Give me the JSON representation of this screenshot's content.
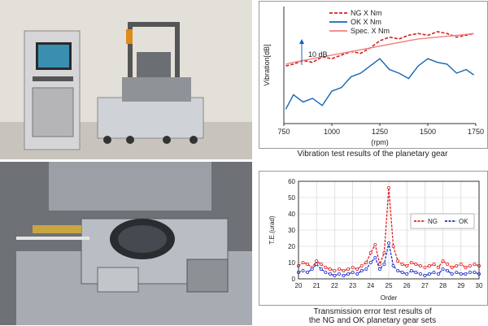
{
  "chart_data": [
    {
      "type": "line",
      "title": "",
      "caption": "Vibration test results of the planetary gear",
      "ylabel": "Vibration[dB]",
      "xlabel": "(rpm)",
      "xlim": [
        750,
        1750
      ],
      "x_ticks": [
        "750",
        "1000",
        "1250",
        "1500",
        "1750"
      ],
      "scale_annotation": "10 dB",
      "legend_position": "top",
      "x": [
        760,
        800,
        850,
        900,
        950,
        1000,
        1050,
        1100,
        1150,
        1200,
        1250,
        1300,
        1350,
        1400,
        1450,
        1500,
        1550,
        1600,
        1650,
        1700,
        1740
      ],
      "series": [
        {
          "name": "NG X Nm",
          "color": "#d42020",
          "dash": "dashed",
          "values": [
            62,
            63,
            65,
            64,
            67,
            66,
            68,
            70,
            69,
            72,
            76,
            78,
            77,
            79,
            80,
            79,
            81,
            80,
            78,
            79,
            80
          ]
        },
        {
          "name": "OK X Nm",
          "color": "#1464b4",
          "dash": "solid",
          "values": [
            38,
            46,
            42,
            44,
            40,
            48,
            50,
            56,
            58,
            62,
            66,
            60,
            58,
            55,
            62,
            66,
            64,
            63,
            58,
            60,
            57
          ]
        },
        {
          "name": "Spec. X Nm",
          "color": "#f08080",
          "dash": "solid",
          "values": [
            63,
            64,
            65,
            66,
            67,
            68,
            69,
            70,
            71,
            72,
            73,
            74,
            75,
            76,
            77,
            77.5,
            78,
            78.5,
            79,
            79.5,
            80
          ]
        }
      ]
    },
    {
      "type": "line",
      "title": "",
      "caption_line1": "Transmission error test results of",
      "caption_line2": "the NG and OK planetary gear sets",
      "ylabel": "T.E.(urad)",
      "xlabel": "Order",
      "xlim": [
        20,
        30
      ],
      "ylim": [
        0,
        60
      ],
      "x_ticks": [
        "20",
        "21",
        "22",
        "23",
        "24",
        "25",
        "26",
        "27",
        "28",
        "29",
        "30"
      ],
      "y_ticks": [
        "0",
        "10",
        "20",
        "30",
        "40",
        "50",
        "60"
      ],
      "grid": true,
      "legend_position": "right",
      "x": [
        20.0,
        20.25,
        20.5,
        20.75,
        21.0,
        21.25,
        21.5,
        21.75,
        22.0,
        22.25,
        22.5,
        22.75,
        23.0,
        23.25,
        23.5,
        23.75,
        24.0,
        24.25,
        24.5,
        24.75,
        25.0,
        25.25,
        25.5,
        25.75,
        26.0,
        26.25,
        26.5,
        26.75,
        27.0,
        27.25,
        27.5,
        27.75,
        28.0,
        28.25,
        28.5,
        28.75,
        29.0,
        29.25,
        29.5,
        29.75,
        30.0
      ],
      "series": [
        {
          "name": "NG",
          "color": "#e02020",
          "dash": "dashed",
          "values": [
            8,
            10,
            9,
            7,
            11,
            9,
            7,
            6,
            5,
            6,
            5,
            6,
            7,
            6,
            8,
            10,
            16,
            21,
            9,
            16,
            56,
            20,
            11,
            9,
            8,
            10,
            9,
            8,
            7,
            8,
            9,
            7,
            11,
            9,
            7,
            8,
            9,
            7,
            8,
            9,
            8
          ]
        },
        {
          "name": "OK",
          "color": "#1a2fd0",
          "dash": "dashed",
          "values": [
            4,
            5,
            4,
            6,
            9,
            6,
            4,
            3,
            2,
            3,
            2,
            3,
            4,
            3,
            5,
            6,
            10,
            13,
            6,
            9,
            22,
            8,
            5,
            4,
            3,
            5,
            4,
            3,
            2,
            3,
            4,
            3,
            6,
            5,
            3,
            4,
            3,
            3,
            4,
            4,
            3
          ]
        }
      ]
    }
  ]
}
